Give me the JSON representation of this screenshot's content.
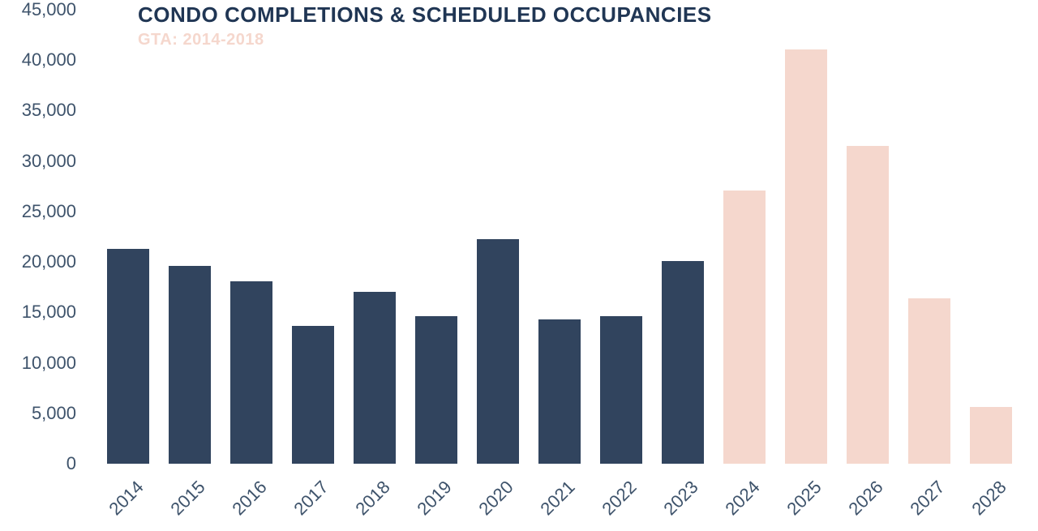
{
  "chart": {
    "type": "bar",
    "title": "CONDO COMPLETIONS & SCHEDULED OCCUPANCIES",
    "subtitle": "GTA: 2014-2018",
    "title_color": "#203654",
    "subtitle_color": "#f5d7cd",
    "title_fontsize": 26,
    "subtitle_fontsize": 20,
    "background_color": "#ffffff",
    "axis_label_color": "#3e536b",
    "axis_label_fontsize": 22,
    "y": {
      "min": 0,
      "max": 45000,
      "tick_step": 5000,
      "ticks": [
        "0",
        "5,000",
        "10,000",
        "15,000",
        "20,000",
        "25,000",
        "30,000",
        "35,000",
        "40,000",
        "45,000"
      ]
    },
    "x_labels": [
      "2014",
      "2015",
      "2016",
      "2017",
      "2018",
      "2019",
      "2020",
      "2021",
      "2022",
      "2023",
      "2024",
      "2025",
      "2026",
      "2027",
      "2028"
    ],
    "values": [
      21300,
      19600,
      18100,
      13700,
      17000,
      14600,
      22300,
      14300,
      14600,
      20100,
      27100,
      41100,
      31500,
      16400,
      5600
    ],
    "bar_colors": [
      "#31445e",
      "#31445e",
      "#31445e",
      "#31445e",
      "#31445e",
      "#31445e",
      "#31445e",
      "#31445e",
      "#31445e",
      "#31445e",
      "#f5d7cd",
      "#f5d7cd",
      "#f5d7cd",
      "#f5d7cd",
      "#f5d7cd"
    ],
    "bar_width_ratio": 0.68,
    "xlabel_rotation_deg": -45
  }
}
